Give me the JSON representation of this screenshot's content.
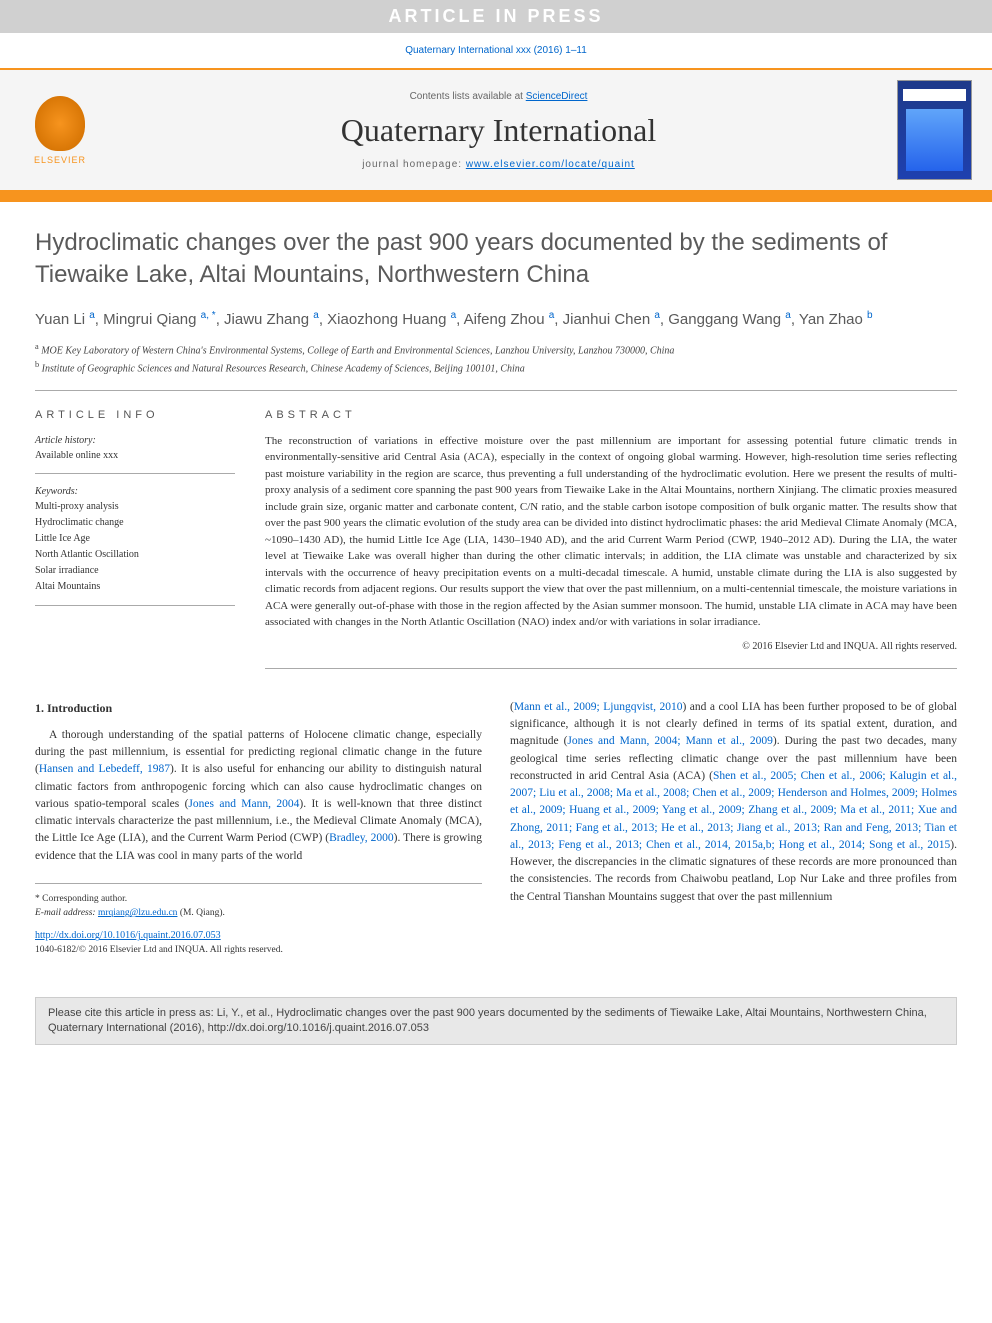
{
  "banner": {
    "article_in_press": "ARTICLE IN PRESS",
    "citation_line": "Quaternary International xxx (2016) 1–11"
  },
  "header": {
    "elsevier_label": "ELSEVIER",
    "contents_prefix": "Contents lists available at ",
    "contents_link": "ScienceDirect",
    "journal_name": "Quaternary International",
    "homepage_prefix": "journal homepage: ",
    "homepage_url": "www.elsevier.com/locate/quaint",
    "colors": {
      "accent_orange": "#f7941e",
      "link_blue": "#0066cc",
      "banner_bg": "#d0d0d0",
      "header_bg": "#f5f5f5",
      "cover_bg": "#1e3a8a"
    }
  },
  "article": {
    "title": "Hydroclimatic changes over the past 900 years documented by the sediments of Tiewaike Lake, Altai Mountains, Northwestern China",
    "authors_html": "Yuan Li <sup>a</sup>, Mingrui Qiang <sup>a, *</sup>, Jiawu Zhang <sup>a</sup>, Xiaozhong Huang <sup>a</sup>, Aifeng Zhou <sup>a</sup>, Jianhui Chen <sup>a</sup>, Ganggang Wang <sup>a</sup>, Yan Zhao <sup>b</sup>",
    "affiliations": {
      "a": "MOE Key Laboratory of Western China's Environmental Systems, College of Earth and Environmental Sciences, Lanzhou University, Lanzhou 730000, China",
      "b": "Institute of Geographic Sciences and Natural Resources Research, Chinese Academy of Sciences, Beijing 100101, China"
    }
  },
  "info": {
    "header": "ARTICLE INFO",
    "history_label": "Article history:",
    "history_value": "Available online xxx",
    "keywords_label": "Keywords:",
    "keywords": [
      "Multi-proxy analysis",
      "Hydroclimatic change",
      "Little Ice Age",
      "North Atlantic Oscillation",
      "Solar irradiance",
      "Altai Mountains"
    ]
  },
  "abstract": {
    "header": "ABSTRACT",
    "text": "The reconstruction of variations in effective moisture over the past millennium are important for assessing potential future climatic trends in environmentally-sensitive arid Central Asia (ACA), especially in the context of ongoing global warming. However, high-resolution time series reflecting past moisture variability in the region are scarce, thus preventing a full understanding of the hydroclimatic evolution. Here we present the results of multi-proxy analysis of a sediment core spanning the past 900 years from Tiewaike Lake in the Altai Mountains, northern Xinjiang. The climatic proxies measured include grain size, organic matter and carbonate content, C/N ratio, and the stable carbon isotope composition of bulk organic matter. The results show that over the past 900 years the climatic evolution of the study area can be divided into distinct hydroclimatic phases: the arid Medieval Climate Anomaly (MCA, ~1090–1430 AD), the humid Little Ice Age (LIA, 1430–1940 AD), and the arid Current Warm Period (CWP, 1940–2012 AD). During the LIA, the water level at Tiewaike Lake was overall higher than during the other climatic intervals; in addition, the LIA climate was unstable and characterized by six intervals with the occurrence of heavy precipitation events on a multi-decadal timescale. A humid, unstable climate during the LIA is also suggested by climatic records from adjacent regions. Our results support the view that over the past millennium, on a multi-centennial timescale, the moisture variations in ACA were generally out-of-phase with those in the region affected by the Asian summer monsoon. The humid, unstable LIA climate in ACA may have been associated with changes in the North Atlantic Oscillation (NAO) index and/or with variations in solar irradiance.",
    "copyright": "© 2016 Elsevier Ltd and INQUA. All rights reserved."
  },
  "body": {
    "section_number": "1.",
    "section_title": "Introduction",
    "col1": "A thorough understanding of the spatial patterns of Holocene climatic change, especially during the past millennium, is essential for predicting regional climatic change in the future (Hansen and Lebedeff, 1987). It is also useful for enhancing our ability to distinguish natural climatic factors from anthropogenic forcing which can also cause hydroclimatic changes on various spatio-temporal scales (Jones and Mann, 2004). It is well-known that three distinct climatic intervals characterize the past millennium, i.e., the Medieval Climate Anomaly (MCA), the Little Ice Age (LIA), and the Current Warm Period (CWP) (Bradley, 2000). There is growing evidence that the LIA was cool in many parts of the world",
    "col2": "(Mann et al., 2009; Ljungqvist, 2010) and a cool LIA has been further proposed to be of global significance, although it is not clearly defined in terms of its spatial extent, duration, and magnitude (Jones and Mann, 2004; Mann et al., 2009). During the past two decades, many geological time series reflecting climatic change over the past millennium have been reconstructed in arid Central Asia (ACA) (Shen et al., 2005; Chen et al., 2006; Kalugin et al., 2007; Liu et al., 2008; Ma et al., 2008; Chen et al., 2009; Henderson and Holmes, 2009; Holmes et al., 2009; Huang et al., 2009; Yang et al., 2009; Zhang et al., 2009; Ma et al., 2011; Xue and Zhong, 2011; Fang et al., 2013; He et al., 2013; Jiang et al., 2013; Ran and Feng, 2013; Tian et al., 2013; Feng et al., 2013; Chen et al., 2014, 2015a,b; Hong et al., 2014; Song et al., 2015). However, the discrepancies in the climatic signatures of these records are more pronounced than the consistencies. The records from Chaiwobu peatland, Lop Nur Lake and three profiles from the Central Tianshan Mountains suggest that over the past millennium"
  },
  "footer": {
    "corresponding_label": "* Corresponding author.",
    "email_label": "E-mail address:",
    "email": "mrqiang@lzu.edu.cn",
    "email_suffix": "(M. Qiang).",
    "doi_url": "http://dx.doi.org/10.1016/j.quaint.2016.07.053",
    "issn_line": "1040-6182/© 2016 Elsevier Ltd and INQUA. All rights reserved."
  },
  "citation_box": {
    "text": "Please cite this article in press as: Li, Y., et al., Hydroclimatic changes over the past 900 years documented by the sediments of Tiewaike Lake, Altai Mountains, Northwestern China, Quaternary International (2016), http://dx.doi.org/10.1016/j.quaint.2016.07.053"
  }
}
